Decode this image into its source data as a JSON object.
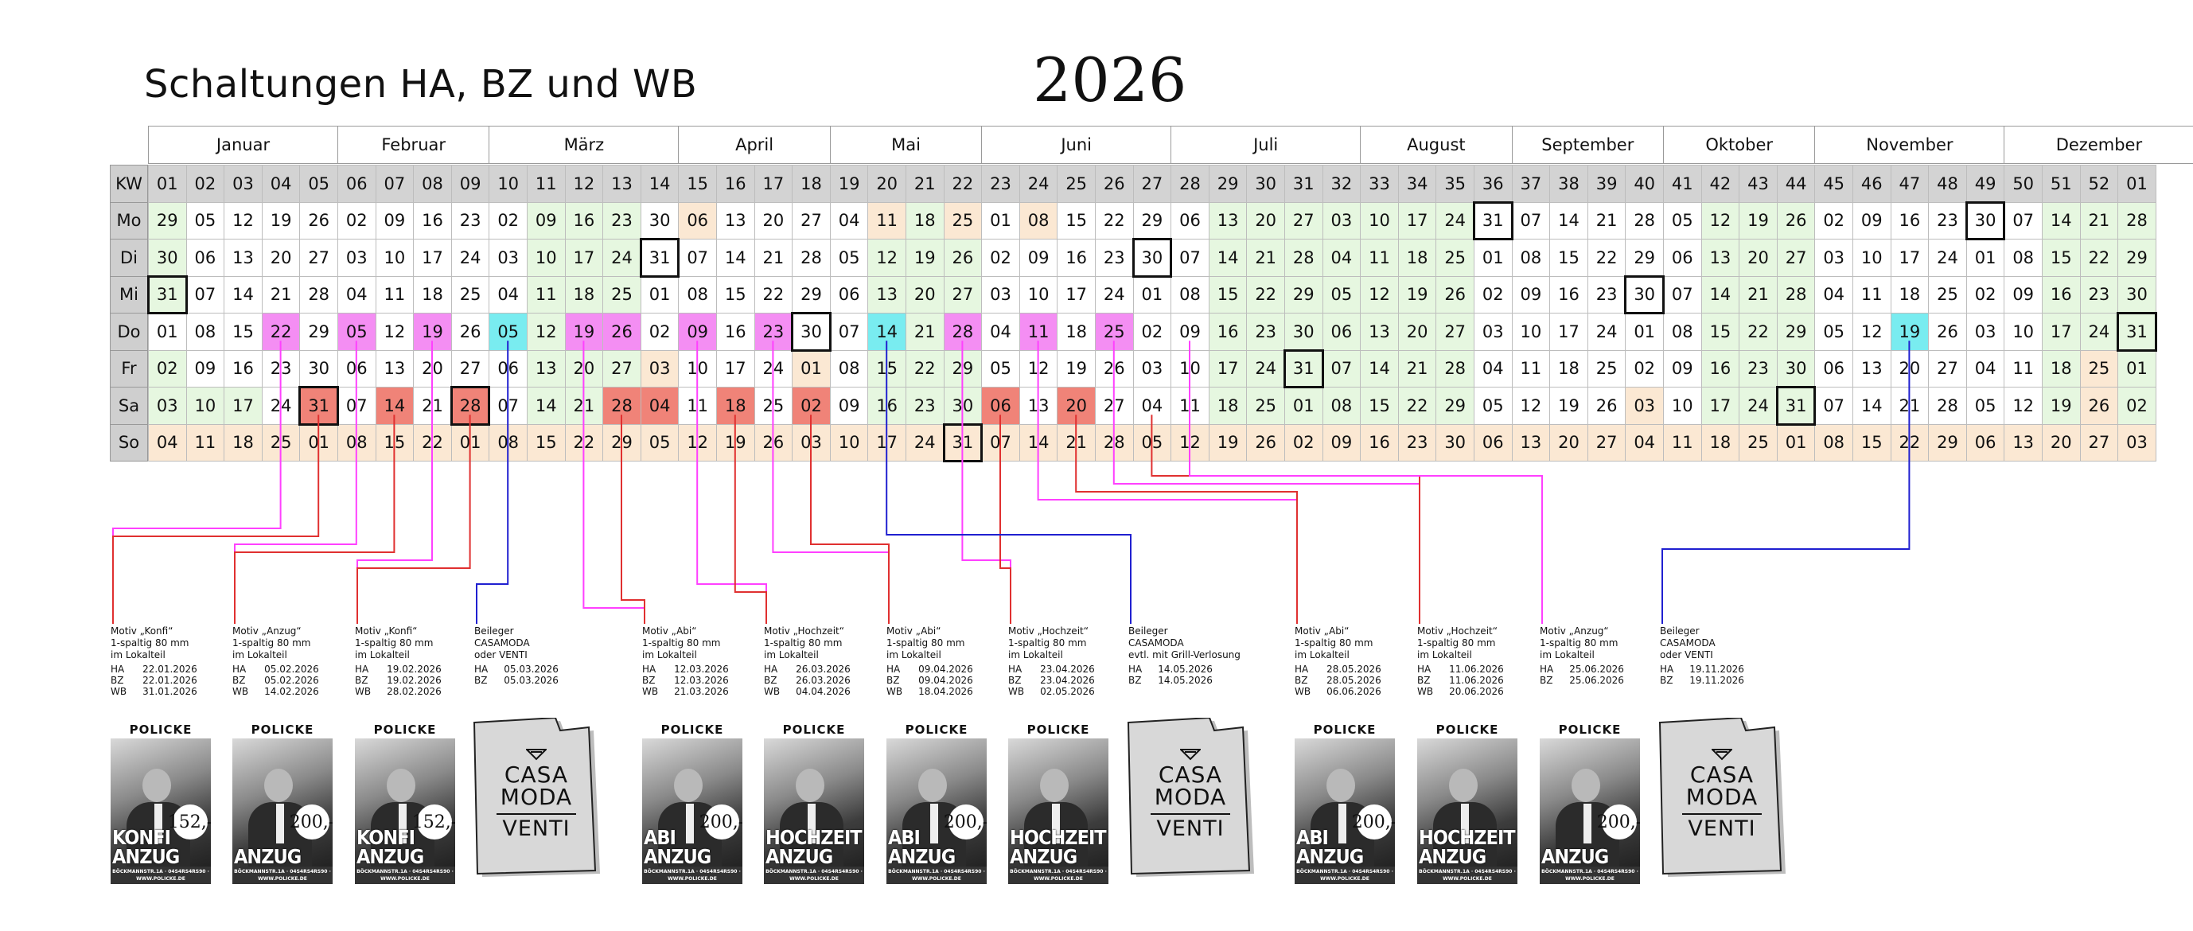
{
  "title": "Schaltungen HA, BZ und WB",
  "year": "2026",
  "months": [
    {
      "name": "Januar",
      "start": 0,
      "span": 5
    },
    {
      "name": "Februar",
      "start": 5,
      "span": 4
    },
    {
      "name": "März",
      "start": 9,
      "span": 5
    },
    {
      "name": "April",
      "start": 14,
      "span": 4
    },
    {
      "name": "Mai",
      "start": 18,
      "span": 4
    },
    {
      "name": "Juni",
      "start": 22,
      "span": 5
    },
    {
      "name": "Juli",
      "start": 27,
      "span": 5
    },
    {
      "name": "August",
      "start": 32,
      "span": 4
    },
    {
      "name": "September",
      "start": 36,
      "span": 4
    },
    {
      "name": "Oktober",
      "start": 40,
      "span": 4
    },
    {
      "name": "November",
      "start": 44,
      "span": 5
    },
    {
      "name": "Dezember",
      "start": 49,
      "span": 5
    }
  ],
  "row_labels": [
    "KW",
    "Mo",
    "Di",
    "Mi",
    "Do",
    "Fr",
    "Sa",
    "So"
  ],
  "colors": {
    "header": "#d3d3d3",
    "green": "#e6f7e0",
    "orange": "#fbe8d3",
    "pink": "#f48ef3",
    "red": "#f08378",
    "cyan": "#79ecf0",
    "white": "#ffffff",
    "line_pink": "#ff40ff",
    "line_red": "#e03030",
    "line_blue": "#2020d0"
  },
  "calendar": {
    "weeks": [
      "01",
      "02",
      "03",
      "04",
      "05",
      "06",
      "07",
      "08",
      "09",
      "10",
      "11",
      "12",
      "13",
      "14",
      "15",
      "16",
      "17",
      "18",
      "19",
      "20",
      "21",
      "22",
      "23",
      "24",
      "25",
      "26",
      "27",
      "28",
      "29",
      "30",
      "31",
      "32",
      "33",
      "34",
      "35",
      "36",
      "37",
      "38",
      "39",
      "40",
      "41",
      "42",
      "43",
      "44",
      "45",
      "46",
      "47",
      "48",
      "49",
      "50",
      "51",
      "52",
      "01"
    ],
    "Mo": [
      "29",
      "05",
      "12",
      "19",
      "26",
      "02",
      "09",
      "16",
      "23",
      "02",
      "09",
      "16",
      "23",
      "30",
      "06",
      "13",
      "20",
      "27",
      "04",
      "11",
      "18",
      "25",
      "01",
      "08",
      "15",
      "22",
      "29",
      "06",
      "13",
      "20",
      "27",
      "03",
      "10",
      "17",
      "24",
      "31",
      "07",
      "14",
      "21",
      "28",
      "05",
      "12",
      "19",
      "26",
      "02",
      "09",
      "16",
      "23",
      "30",
      "07",
      "14",
      "21",
      "28"
    ],
    "Di": [
      "30",
      "06",
      "13",
      "20",
      "27",
      "03",
      "10",
      "17",
      "24",
      "03",
      "10",
      "17",
      "24",
      "31",
      "07",
      "14",
      "21",
      "28",
      "05",
      "12",
      "19",
      "26",
      "02",
      "09",
      "16",
      "23",
      "30",
      "07",
      "14",
      "21",
      "28",
      "04",
      "11",
      "18",
      "25",
      "01",
      "08",
      "15",
      "22",
      "29",
      "06",
      "13",
      "20",
      "27",
      "03",
      "10",
      "17",
      "24",
      "01",
      "08",
      "15",
      "22",
      "29"
    ],
    "Mi": [
      "31",
      "07",
      "14",
      "21",
      "28",
      "04",
      "11",
      "18",
      "25",
      "04",
      "11",
      "18",
      "25",
      "01",
      "08",
      "15",
      "22",
      "29",
      "06",
      "13",
      "20",
      "27",
      "03",
      "10",
      "17",
      "24",
      "01",
      "08",
      "15",
      "22",
      "29",
      "05",
      "12",
      "19",
      "26",
      "02",
      "09",
      "16",
      "23",
      "30",
      "07",
      "14",
      "21",
      "28",
      "04",
      "11",
      "18",
      "25",
      "02",
      "09",
      "16",
      "23",
      "30"
    ],
    "Do": [
      "01",
      "08",
      "15",
      "22",
      "29",
      "05",
      "12",
      "19",
      "26",
      "05",
      "12",
      "19",
      "26",
      "02",
      "09",
      "16",
      "23",
      "30",
      "07",
      "14",
      "21",
      "28",
      "04",
      "11",
      "18",
      "25",
      "02",
      "09",
      "16",
      "23",
      "30",
      "06",
      "13",
      "20",
      "27",
      "03",
      "10",
      "17",
      "24",
      "01",
      "08",
      "15",
      "22",
      "29",
      "05",
      "12",
      "19",
      "26",
      "03",
      "10",
      "17",
      "24",
      "31"
    ],
    "Fr": [
      "02",
      "09",
      "16",
      "23",
      "30",
      "06",
      "13",
      "20",
      "27",
      "06",
      "13",
      "20",
      "27",
      "03",
      "10",
      "17",
      "24",
      "01",
      "08",
      "15",
      "22",
      "29",
      "05",
      "12",
      "19",
      "26",
      "03",
      "10",
      "17",
      "24",
      "31",
      "07",
      "14",
      "21",
      "28",
      "04",
      "11",
      "18",
      "25",
      "02",
      "09",
      "16",
      "23",
      "30",
      "06",
      "13",
      "20",
      "27",
      "04",
      "11",
      "18",
      "25",
      "01"
    ],
    "Sa": [
      "03",
      "10",
      "17",
      "24",
      "31",
      "07",
      "14",
      "21",
      "28",
      "07",
      "14",
      "21",
      "28",
      "04",
      "11",
      "18",
      "25",
      "02",
      "09",
      "16",
      "23",
      "30",
      "06",
      "13",
      "20",
      "27",
      "04",
      "11",
      "18",
      "25",
      "01",
      "08",
      "15",
      "22",
      "29",
      "05",
      "12",
      "19",
      "26",
      "03",
      "10",
      "17",
      "24",
      "31",
      "07",
      "14",
      "21",
      "28",
      "05",
      "12",
      "19",
      "26",
      "02"
    ],
    "So": [
      "04",
      "11",
      "18",
      "25",
      "01",
      "08",
      "15",
      "22",
      "01",
      "08",
      "15",
      "22",
      "29",
      "05",
      "12",
      "19",
      "26",
      "03",
      "10",
      "17",
      "24",
      "31",
      "07",
      "14",
      "21",
      "28",
      "05",
      "12",
      "19",
      "26",
      "02",
      "09",
      "16",
      "23",
      "30",
      "06",
      "13",
      "20",
      "27",
      "04",
      "11",
      "18",
      "25",
      "01",
      "08",
      "15",
      "22",
      "29",
      "06",
      "13",
      "20",
      "27",
      "03"
    ]
  },
  "ads": [
    {
      "lines": [
        "Motiv „Konfi“",
        "1-spaltig 80 mm",
        "im Lokalteil"
      ],
      "dates": [
        [
          "HA",
          "22.01.2026"
        ],
        [
          "BZ",
          "22.01.2026"
        ],
        [
          "WB",
          "31.01.2026"
        ]
      ],
      "flyer": {
        "brand": "POLICKE",
        "word": "KONFI ANZUG",
        "price": "152,-",
        "footer": "BÖCKMANNSTR.1A · 04S4RS4RS90 · WWW.POLICKE.DE"
      }
    },
    {
      "lines": [
        "Motiv „Anzug“",
        "1-spaltig 80 mm",
        "im Lokalteil"
      ],
      "dates": [
        [
          "HA",
          "05.02.2026"
        ],
        [
          "BZ",
          "05.02.2026"
        ],
        [
          "WB",
          "14.02.2026"
        ]
      ],
      "flyer": {
        "brand": "POLICKE",
        "word": "ANZUG",
        "price": "200,-",
        "footer": "BÖCKMANNSTR.1A · 04S4RS4RS90 · WWW.POLICKE.DE"
      }
    },
    {
      "lines": [
        "Motiv „Konfi“",
        "1-spaltig 80 mm",
        "im Lokalteil"
      ],
      "dates": [
        [
          "HA",
          "19.02.2026"
        ],
        [
          "BZ",
          "19.02.2026"
        ],
        [
          "WB",
          "28.02.2026"
        ]
      ],
      "flyer": {
        "brand": "POLICKE",
        "word": "KONFI ANZUG",
        "price": "152,-",
        "footer": "BÖCKMANNSTR.1A · 04S4RS4RS90 · WWW.POLICKE.DE"
      }
    },
    {
      "lines": [
        "Beileger",
        "CASAMODA",
        "oder VENTI"
      ],
      "dates": [
        [
          "HA",
          "05.03.2026"
        ],
        [
          "BZ",
          "05.03.2026"
        ]
      ],
      "casa": {
        "top": "CASA",
        "mid": "MODA",
        "bottom": "VENTI"
      }
    },
    {
      "lines": [
        "Motiv „Abi“",
        "1-spaltig 80 mm",
        "im Lokalteil"
      ],
      "dates": [
        [
          "HA",
          "12.03.2026"
        ],
        [
          "BZ",
          "12.03.2026"
        ],
        [
          "WB",
          "21.03.2026"
        ]
      ],
      "flyer": {
        "brand": "POLICKE",
        "word": "ABI ANZUG",
        "price": "200,-",
        "footer": "BÖCKMANNSTR.1A · 04S4RS4RS90 · WWW.POLICKE.DE"
      }
    },
    {
      "lines": [
        "Motiv „Hochzeit“",
        "1-spaltig 80 mm",
        "im Lokalteil"
      ],
      "dates": [
        [
          "HA",
          "26.03.2026"
        ],
        [
          "BZ",
          "26.03.2026"
        ],
        [
          "WB",
          "04.04.2026"
        ]
      ],
      "flyer": {
        "brand": "POLICKE",
        "word": "HOCHZEIT ANZUG",
        "price": "",
        "footer": "BÖCKMANNSTR.1A · 04S4RS4RS90 · WWW.POLICKE.DE"
      }
    },
    {
      "lines": [
        "Motiv „Abi“",
        "1-spaltig 80 mm",
        "im Lokalteil"
      ],
      "dates": [
        [
          "HA",
          "09.04.2026"
        ],
        [
          "BZ",
          "09.04.2026"
        ],
        [
          "WB",
          "18.04.2026"
        ]
      ],
      "flyer": {
        "brand": "POLICKE",
        "word": "ABI ANZUG",
        "price": "200,-",
        "footer": "BÖCKMANNSTR.1A · 04S4RS4RS90 · WWW.POLICKE.DE"
      }
    },
    {
      "lines": [
        "Motiv „Hochzeit“",
        "1-spaltig 80 mm",
        "im Lokalteil"
      ],
      "dates": [
        [
          "HA",
          "23.04.2026"
        ],
        [
          "BZ",
          "23.04.2026"
        ],
        [
          "WB",
          "02.05.2026"
        ]
      ],
      "flyer": {
        "brand": "POLICKE",
        "word": "HOCHZEIT ANZUG",
        "price": "",
        "footer": "BÖCKMANNSTR.1A · 04S4RS4RS90 · WWW.POLICKE.DE"
      }
    },
    {
      "lines": [
        "Beileger",
        "CASAMODA",
        "evtl. mit Grill-Verlosung"
      ],
      "dates": [
        [
          "HA",
          "14.05.2026"
        ],
        [
          "BZ",
          "14.05.2026"
        ]
      ],
      "casa": {
        "top": "CASA",
        "mid": "MODA",
        "bottom": "VENTI"
      }
    },
    {
      "lines": [
        "Motiv „Abi“",
        "1-spaltig 80 mm",
        "im Lokalteil"
      ],
      "dates": [
        [
          "HA",
          "28.05.2026"
        ],
        [
          "BZ",
          "28.05.2026"
        ],
        [
          "WB",
          "06.06.2026"
        ]
      ],
      "flyer": {
        "brand": "POLICKE",
        "word": "ABI ANZUG",
        "price": "200,-",
        "footer": "BÖCKMANNSTR.1A · 04S4RS4RS90 · WWW.POLICKE.DE"
      }
    },
    {
      "lines": [
        "Motiv „Hochzeit“",
        "1-spaltig 80 mm",
        "im Lokalteil"
      ],
      "dates": [
        [
          "HA",
          "11.06.2026"
        ],
        [
          "BZ",
          "11.06.2026"
        ],
        [
          "WB",
          "20.06.2026"
        ]
      ],
      "flyer": {
        "brand": "POLICKE",
        "word": "HOCHZEIT ANZUG",
        "price": "",
        "footer": "BÖCKMANNSTR.1A · 04S4RS4RS90 · WWW.POLICKE.DE"
      }
    },
    {
      "lines": [
        "Motiv „Anzug“",
        "1-spaltig 80 mm",
        "im Lokalteil"
      ],
      "dates": [
        [
          "HA",
          "25.06.2026"
        ],
        [
          "BZ",
          "25.06.2026"
        ]
      ],
      "flyer": {
        "brand": "POLICKE",
        "word": "ANZUG",
        "price": "200,-",
        "footer": "BÖCKMANNSTR.1A · 04S4RS4RS90 · WWW.POLICKE.DE"
      }
    },
    {
      "lines": [
        "Beileger",
        "CASAMODA",
        "oder VENTI"
      ],
      "dates": [
        [
          "HA",
          "19.11.2026"
        ],
        [
          "BZ",
          "19.11.2026"
        ]
      ],
      "casa": {
        "top": "CASA",
        "mid": "MODA",
        "bottom": "VENTI"
      }
    }
  ]
}
